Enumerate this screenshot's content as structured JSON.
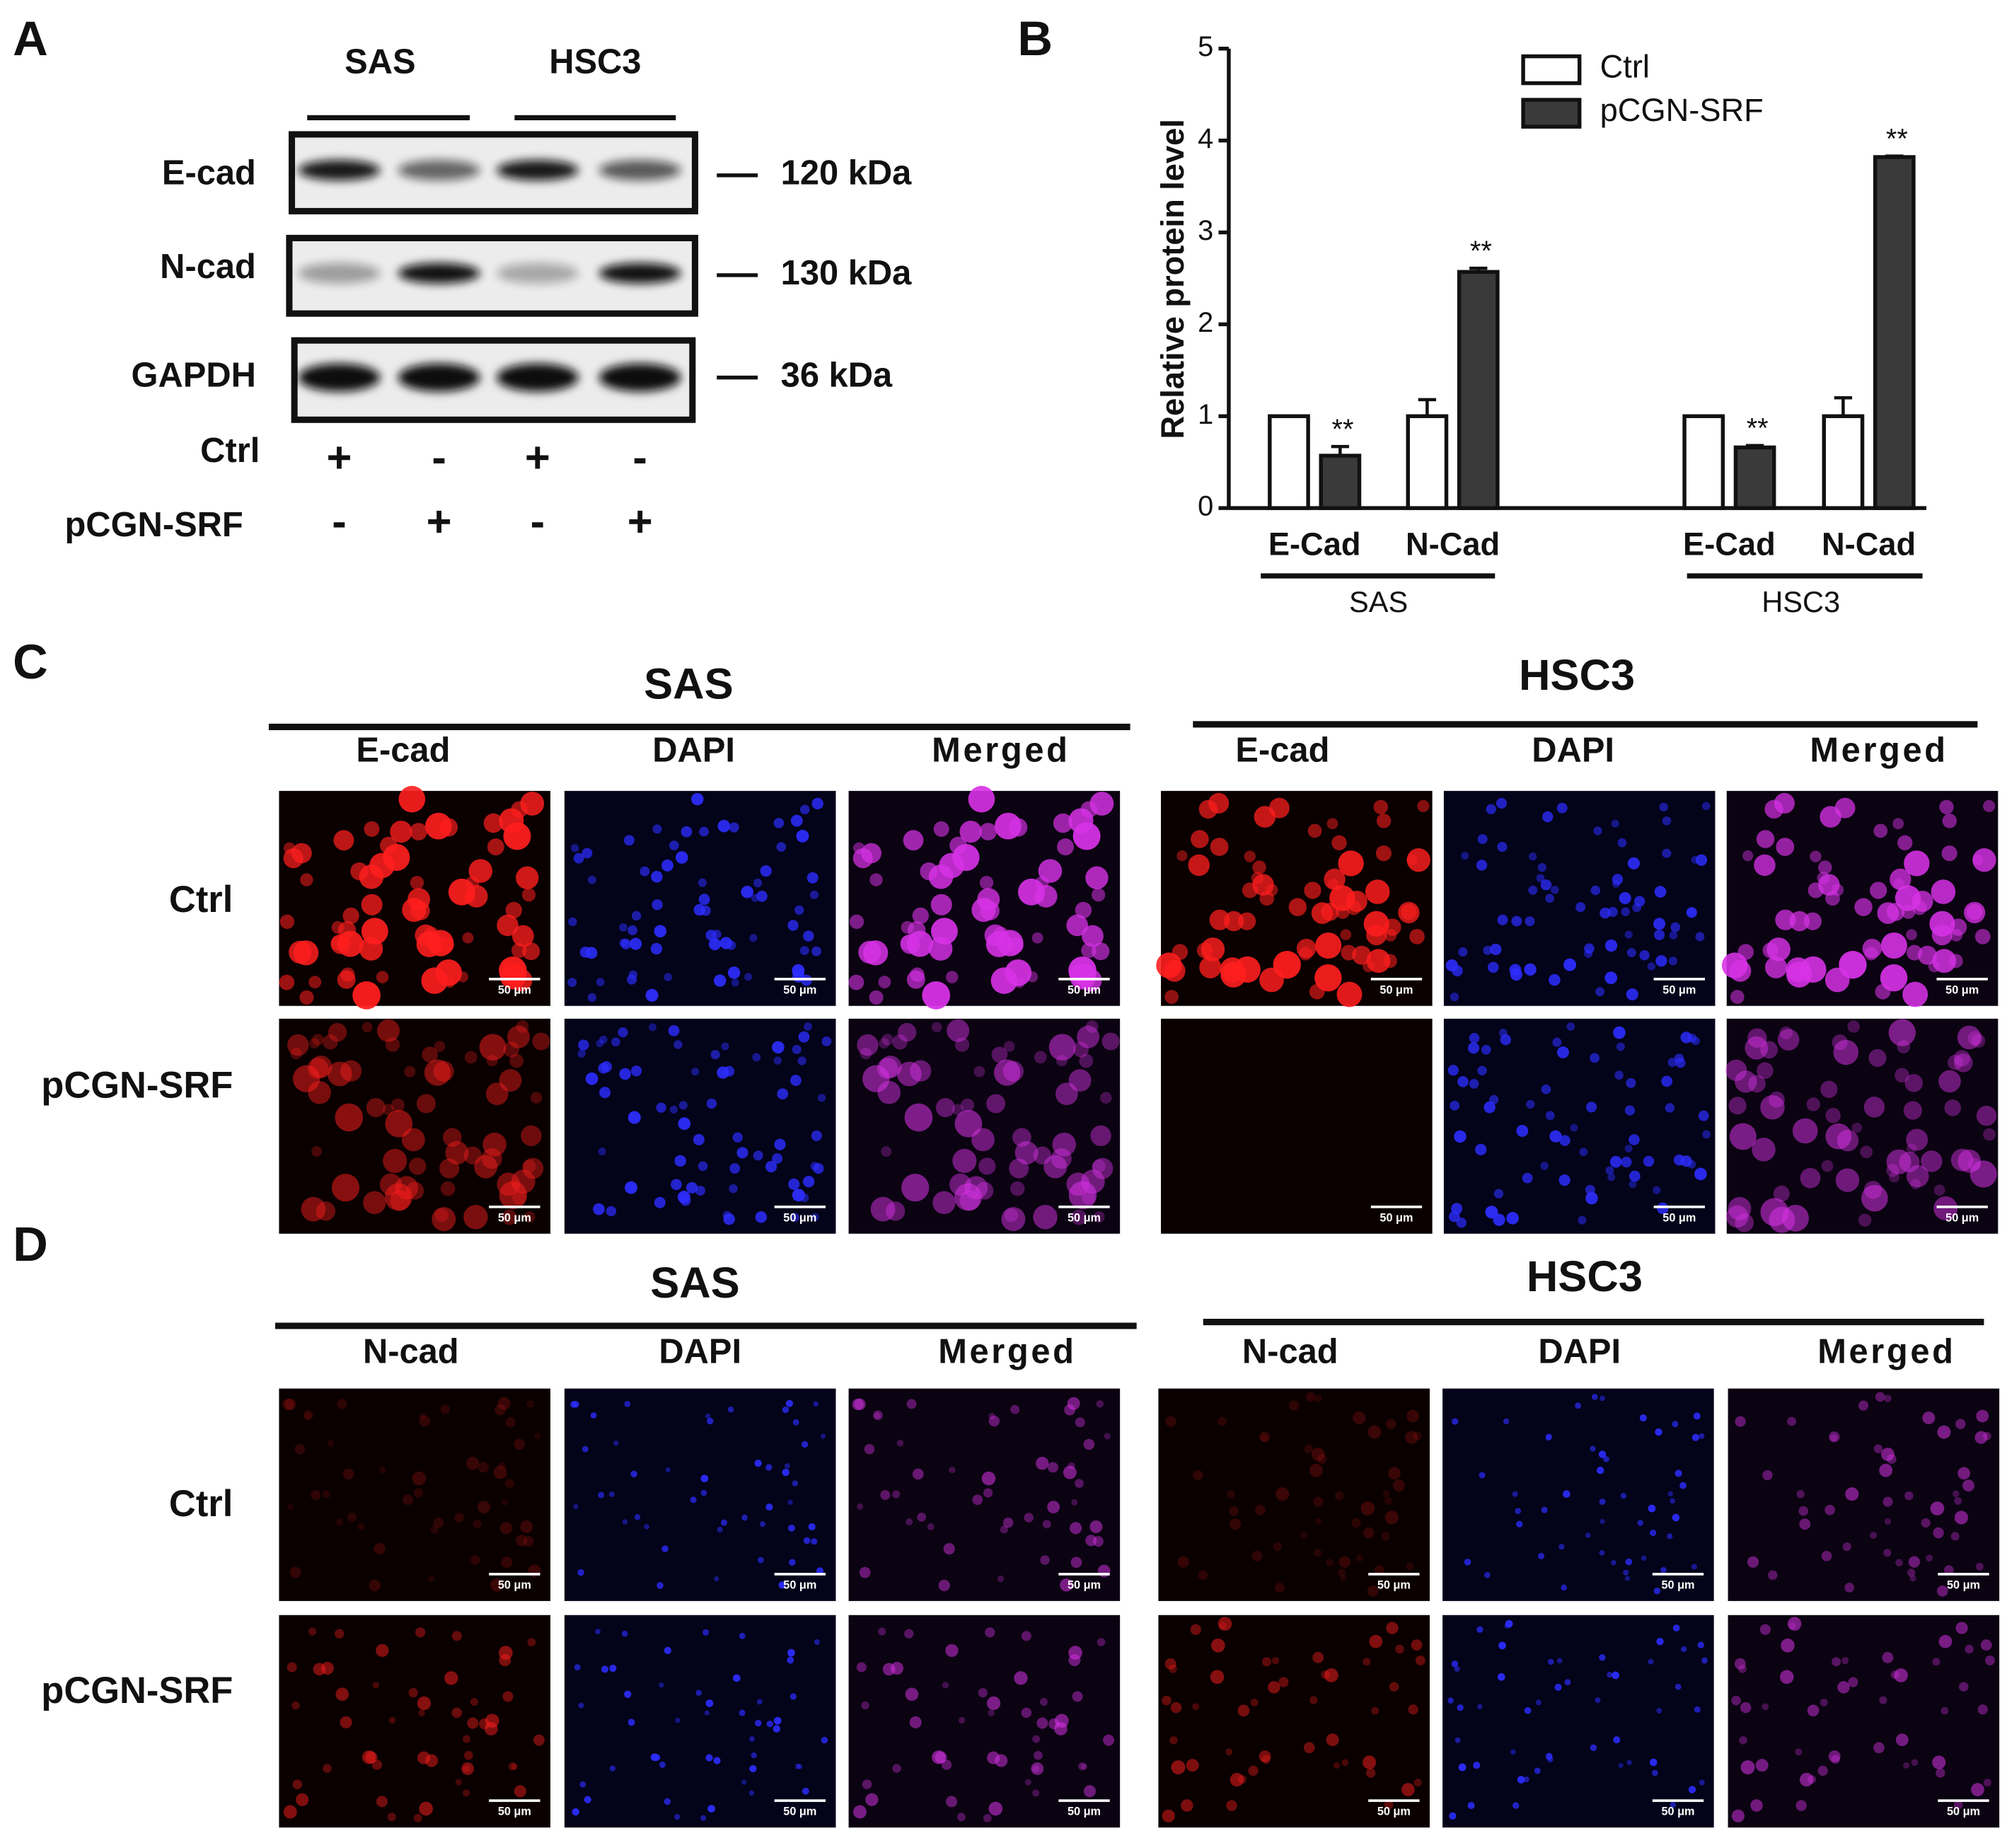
{
  "panels": {
    "a": {
      "label": "A",
      "groups": [
        "SAS",
        "HSC3"
      ],
      "rows": [
        {
          "name": "E-cad",
          "size": "120 kDa"
        },
        {
          "name": "N-cad",
          "size": "130 kDa"
        },
        {
          "name": "GAPDH",
          "size": "36  kDa"
        }
      ],
      "conditions": [
        {
          "name": "Ctrl",
          "signs": [
            "+",
            "-",
            "+",
            "-"
          ]
        },
        {
          "name": "pCGN-SRF",
          "signs": [
            "-",
            "+",
            "-",
            "+"
          ]
        }
      ]
    },
    "b": {
      "label": "B"
    },
    "c": {
      "label": "C",
      "scale_bar": "50 μm",
      "row_labels": [
        "Ctrl",
        "pCGN-SRF"
      ],
      "blocks": [
        {
          "title": "SAS",
          "channels": [
            "E-cad",
            "DAPI",
            "Merged"
          ]
        },
        {
          "title": "HSC3",
          "channels": [
            "E-cad",
            "DAPI",
            "Merged"
          ]
        }
      ]
    },
    "d": {
      "label": "D",
      "scale_bar": "50 μm",
      "row_labels": [
        "Ctrl",
        "pCGN-SRF"
      ],
      "blocks": [
        {
          "title": "SAS",
          "channels": [
            "N-cad",
            "DAPI",
            "Merged"
          ]
        },
        {
          "title": "HSC3",
          "channels": [
            "N-cad",
            "DAPI",
            "Merged"
          ]
        }
      ]
    }
  },
  "chart_data": {
    "type": "bar",
    "ylabel": "Relative protein level",
    "categories": [
      "E-Cad",
      "N-Cad",
      "E-Cad",
      "N-Cad"
    ],
    "groups": [
      "SAS",
      "HSC3"
    ],
    "series": [
      {
        "name": "Ctrl",
        "color": "#ffffff",
        "values": [
          1,
          1,
          1,
          1
        ],
        "errors": [
          0,
          0.18,
          0,
          0.2
        ]
      },
      {
        "name": "pCGN-SRF",
        "color": "#3a3a3a",
        "values": [
          0.57,
          2.57,
          0.66,
          3.82
        ],
        "errors": [
          0.1,
          0.04,
          0.02,
          0.01
        ]
      }
    ],
    "annotations": [
      "**",
      "**",
      "**",
      "**"
    ],
    "ylim": [
      0,
      5
    ],
    "yticks": [
      0,
      1,
      2,
      3,
      4,
      5
    ],
    "legend": "top-right"
  }
}
